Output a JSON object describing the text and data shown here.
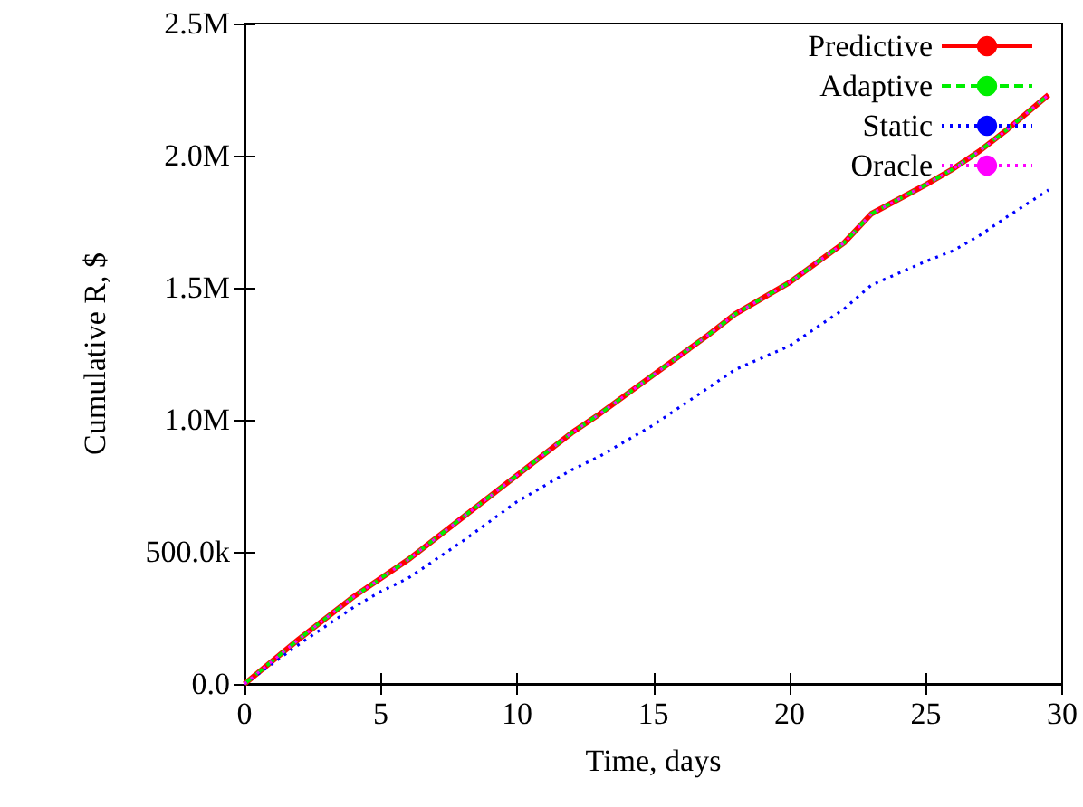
{
  "chart_data": {
    "type": "line",
    "xlabel": "Time, days",
    "ylabel": "Cumulative R, $",
    "x": [
      0,
      2,
      4,
      5,
      6,
      8,
      10,
      12,
      13,
      15,
      17,
      18,
      20,
      22,
      23,
      25,
      26,
      27,
      28,
      29.5
    ],
    "series": [
      {
        "name": "Predictive",
        "color": "#ff0000",
        "line_style": "solid",
        "values": [
          0,
          170000,
          330000,
          400000,
          470000,
          630000,
          790000,
          950000,
          1020000,
          1170000,
          1320000,
          1400000,
          1520000,
          1670000,
          1780000,
          1890000,
          1950000,
          2020000,
          2100000,
          2230000
        ]
      },
      {
        "name": "Adaptive",
        "color": "#00ee00",
        "line_style": "dashed",
        "values": [
          0,
          170000,
          330000,
          400000,
          470000,
          630000,
          790000,
          950000,
          1020000,
          1170000,
          1320000,
          1400000,
          1520000,
          1670000,
          1780000,
          1890000,
          1950000,
          2020000,
          2100000,
          2230000
        ]
      },
      {
        "name": "Static",
        "color": "#0000ff",
        "line_style": "dotted",
        "values": [
          0,
          150000,
          290000,
          350000,
          400000,
          540000,
          690000,
          810000,
          860000,
          980000,
          1120000,
          1190000,
          1280000,
          1420000,
          1510000,
          1600000,
          1640000,
          1700000,
          1770000,
          1870000
        ]
      },
      {
        "name": "Oracle",
        "color": "#ff00ff",
        "line_style": "dotted",
        "values": [
          0,
          170000,
          330000,
          400000,
          470000,
          630000,
          790000,
          950000,
          1020000,
          1170000,
          1320000,
          1400000,
          1520000,
          1670000,
          1780000,
          1890000,
          1950000,
          2020000,
          2100000,
          2230000
        ]
      }
    ],
    "xlim": [
      0,
      30
    ],
    "xticks": [
      0,
      5,
      10,
      15,
      20,
      25,
      30
    ],
    "ylim": [
      0,
      2500000
    ],
    "yticks": [
      {
        "value": 0,
        "label": "0.0"
      },
      {
        "value": 500000,
        "label": "500.0k"
      },
      {
        "value": 1000000,
        "label": "1.0M"
      },
      {
        "value": 1500000,
        "label": "1.5M"
      },
      {
        "value": 2000000,
        "label": "2.0M"
      },
      {
        "value": 2500000,
        "label": "2.5M"
      }
    ],
    "grid": false,
    "legend": "top right",
    "marker": "none"
  }
}
